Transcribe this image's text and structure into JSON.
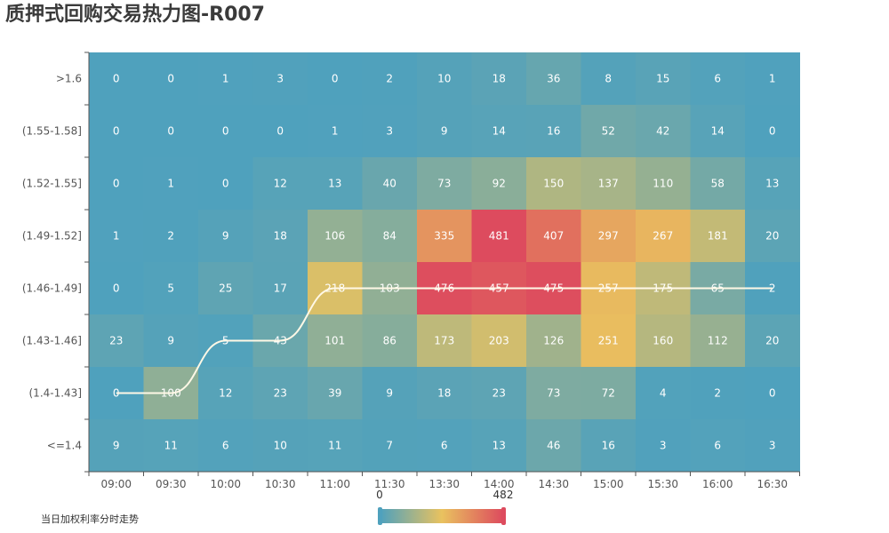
{
  "title": "质押式回购交易热力图-R007",
  "legend_label": "当日加权利率分时走势",
  "colors": {
    "low": "#4fa1bd",
    "mid": "#e9c25f",
    "high": "#dd4b5e",
    "line": "#fff8e6",
    "axis": "#555555"
  },
  "chart_data": {
    "type": "heatmap",
    "title": "质押式回购交易热力图-R007",
    "x_categories": [
      "09:00",
      "09:30",
      "10:00",
      "10:30",
      "11:00",
      "11:30",
      "13:30",
      "14:00",
      "14:30",
      "15:00",
      "15:30",
      "16:00",
      "16:30"
    ],
    "y_categories": [
      ">1.6",
      "(1.55-1.58]",
      "(1.52-1.55]",
      "(1.49-1.52]",
      "(1.46-1.49]",
      "(1.43-1.46]",
      "(1.4-1.43]",
      "<=1.4"
    ],
    "values": [
      [
        0,
        0,
        1,
        3,
        0,
        2,
        10,
        18,
        36,
        8,
        15,
        6,
        1
      ],
      [
        0,
        0,
        0,
        0,
        1,
        3,
        9,
        14,
        16,
        52,
        42,
        14,
        0
      ],
      [
        0,
        1,
        0,
        12,
        13,
        40,
        73,
        92,
        150,
        137,
        110,
        58,
        13
      ],
      [
        1,
        2,
        9,
        18,
        106,
        84,
        335,
        481,
        407,
        297,
        267,
        181,
        20
      ],
      [
        0,
        5,
        25,
        17,
        218,
        103,
        476,
        457,
        475,
        257,
        175,
        65,
        2
      ],
      [
        23,
        9,
        5,
        43,
        101,
        86,
        173,
        203,
        126,
        251,
        160,
        112,
        20
      ],
      [
        0,
        100,
        12,
        23,
        39,
        9,
        18,
        23,
        73,
        72,
        4,
        2,
        0
      ],
      [
        9,
        11,
        6,
        10,
        11,
        7,
        6,
        13,
        46,
        16,
        3,
        6,
        3
      ]
    ],
    "visual_map": {
      "min": 0,
      "max": 482,
      "min_label": "0",
      "max_label": "482"
    },
    "line_series": {
      "name": "当日加权利率分时走势",
      "y_values": [
        "(1.4-1.43]",
        "(1.4-1.43]",
        "(1.43-1.46]",
        "(1.43-1.46]",
        "(1.46-1.49]",
        "(1.46-1.49]",
        "(1.46-1.49]",
        "(1.46-1.49]",
        "(1.46-1.49]",
        "(1.46-1.49]",
        "(1.46-1.49]",
        "(1.46-1.49]",
        "(1.46-1.49]"
      ]
    },
    "legend_position": "bottom-left"
  }
}
